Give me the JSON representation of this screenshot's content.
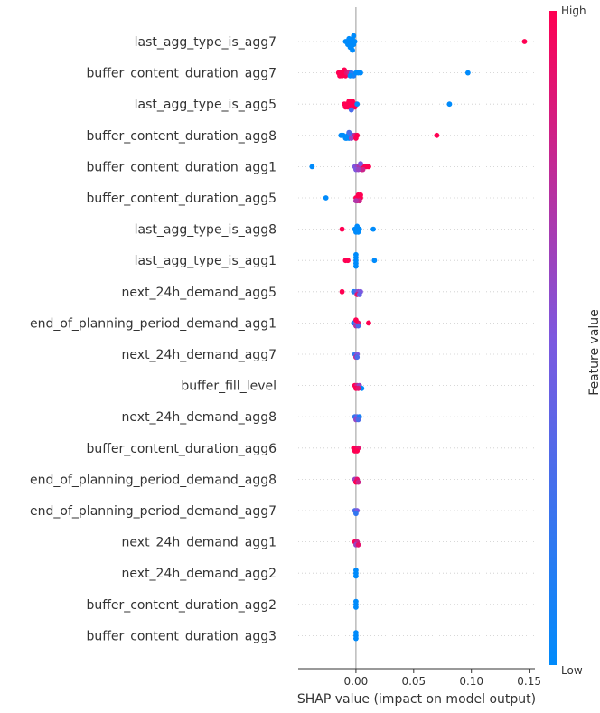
{
  "chart_data": {
    "type": "scatter",
    "subtype": "shap-beeswarm",
    "xlabel": "SHAP value (impact on model output)",
    "xlim": [
      -0.05,
      0.155
    ],
    "x_ticks": [
      {
        "value": 0.0,
        "label": "0.00"
      },
      {
        "value": 0.05,
        "label": "0.05"
      },
      {
        "value": 0.1,
        "label": "0.10"
      },
      {
        "value": 0.15,
        "label": "0.15"
      }
    ],
    "colorbar": {
      "title": "Feature value",
      "high_label": "High",
      "low_label": "Low",
      "low_color": "#008bfb",
      "high_color": "#ff0052"
    },
    "features": [
      {
        "name": "last_agg_type_is_agg7",
        "points": [
          [
            -0.008,
            0
          ],
          [
            -0.006,
            0
          ],
          [
            -0.004,
            0
          ],
          [
            -0.002,
            0
          ],
          [
            -0.007,
            0
          ],
          [
            -0.005,
            0
          ],
          [
            -0.003,
            0
          ],
          [
            -0.001,
            0
          ],
          [
            -0.009,
            0
          ],
          [
            -0.006,
            0
          ],
          [
            -0.004,
            0
          ],
          [
            -0.002,
            0
          ],
          [
            -0.005,
            0
          ],
          [
            -0.003,
            0
          ],
          [
            0.146,
            1
          ]
        ]
      },
      {
        "name": "buffer_content_duration_agg7",
        "points": [
          [
            -0.015,
            1
          ],
          [
            -0.013,
            1
          ],
          [
            -0.011,
            1
          ],
          [
            -0.009,
            1
          ],
          [
            -0.014,
            1
          ],
          [
            -0.012,
            1
          ],
          [
            -0.01,
            1
          ],
          [
            -0.008,
            0.9
          ],
          [
            -0.006,
            0.8
          ],
          [
            -0.004,
            0.2
          ],
          [
            -0.002,
            0.1
          ],
          [
            0.0,
            0
          ],
          [
            0.002,
            0
          ],
          [
            0.004,
            0
          ],
          [
            -0.005,
            0
          ],
          [
            0.097,
            0
          ]
        ]
      },
      {
        "name": "last_agg_type_is_agg5",
        "points": [
          [
            -0.01,
            1
          ],
          [
            -0.008,
            1
          ],
          [
            -0.006,
            1
          ],
          [
            -0.004,
            1
          ],
          [
            -0.002,
            1
          ],
          [
            0.0,
            1
          ],
          [
            -0.009,
            1
          ],
          [
            -0.007,
            1
          ],
          [
            -0.005,
            1
          ],
          [
            -0.003,
            1
          ],
          [
            -0.001,
            1
          ],
          [
            -0.006,
            1
          ],
          [
            0.001,
            0
          ],
          [
            -0.004,
            0.3
          ],
          [
            0.081,
            0
          ]
        ]
      },
      {
        "name": "buffer_content_duration_agg8",
        "points": [
          [
            -0.013,
            0
          ],
          [
            -0.011,
            0
          ],
          [
            -0.009,
            0
          ],
          [
            -0.007,
            0
          ],
          [
            -0.005,
            0.1
          ],
          [
            -0.003,
            0.4
          ],
          [
            -0.001,
            0.8
          ],
          [
            0.001,
            1
          ],
          [
            -0.008,
            0
          ],
          [
            -0.006,
            0
          ],
          [
            -0.004,
            0.6
          ],
          [
            0.0,
            1
          ],
          [
            -0.006,
            0.3
          ],
          [
            0.07,
            1
          ]
        ]
      },
      {
        "name": "buffer_content_duration_agg1",
        "points": [
          [
            -0.038,
            0
          ],
          [
            -0.001,
            0.5
          ],
          [
            0.001,
            0.6
          ],
          [
            0.003,
            0.7
          ],
          [
            0.005,
            0.9
          ],
          [
            0.007,
            1
          ],
          [
            0.009,
            1
          ],
          [
            0.011,
            1
          ],
          [
            0.0,
            0.5
          ],
          [
            0.002,
            0.6
          ],
          [
            0.004,
            0.5
          ],
          [
            0.006,
            0.8
          ]
        ]
      },
      {
        "name": "buffer_content_duration_agg5",
        "points": [
          [
            -0.026,
            0
          ],
          [
            0.0,
            1
          ],
          [
            0.002,
            1
          ],
          [
            0.004,
            1
          ],
          [
            0.001,
            0.9
          ],
          [
            0.003,
            0.8
          ],
          [
            0.0,
            0.7
          ],
          [
            0.002,
            1
          ],
          [
            0.004,
            1
          ]
        ]
      },
      {
        "name": "last_agg_type_is_agg8",
        "points": [
          [
            -0.012,
            1
          ],
          [
            -0.001,
            0
          ],
          [
            0.001,
            0
          ],
          [
            0.003,
            0
          ],
          [
            0.0,
            0
          ],
          [
            0.002,
            0
          ],
          [
            0.001,
            0
          ],
          [
            0.015,
            0
          ]
        ]
      },
      {
        "name": "last_agg_type_is_agg1",
        "points": [
          [
            -0.009,
            1
          ],
          [
            -0.007,
            1
          ],
          [
            0.0,
            0
          ],
          [
            0.0,
            0
          ],
          [
            0.0,
            0
          ],
          [
            0.0,
            0
          ],
          [
            0.0,
            0
          ],
          [
            0.016,
            0
          ]
        ]
      },
      {
        "name": "next_24h_demand_agg5",
        "points": [
          [
            -0.012,
            1
          ],
          [
            -0.002,
            0.1
          ],
          [
            0.0,
            0.3
          ],
          [
            0.002,
            0.6
          ],
          [
            0.004,
            0.5
          ],
          [
            0.001,
            0.9
          ],
          [
            0.003,
            0.4
          ]
        ]
      },
      {
        "name": "end_of_planning_period_demand_agg1",
        "points": [
          [
            -0.002,
            0.1
          ],
          [
            0.0,
            0.4
          ],
          [
            0.002,
            0.9
          ],
          [
            0.0,
            0.7
          ],
          [
            0.002,
            0.3
          ],
          [
            0.0,
            1
          ],
          [
            0.011,
            1
          ]
        ]
      },
      {
        "name": "next_24h_demand_agg7",
        "points": [
          [
            -0.001,
            0.2
          ],
          [
            0.001,
            0.5
          ],
          [
            0.0,
            0.8
          ],
          [
            0.001,
            0.3
          ]
        ]
      },
      {
        "name": "buffer_fill_level",
        "points": [
          [
            -0.001,
            1
          ],
          [
            0.001,
            0.8
          ],
          [
            0.003,
            0.6
          ],
          [
            0.005,
            0
          ],
          [
            0.0,
            1
          ],
          [
            0.002,
            0.9
          ]
        ]
      },
      {
        "name": "next_24h_demand_agg8",
        "points": [
          [
            -0.001,
            0.2
          ],
          [
            0.001,
            0.4
          ],
          [
            0.003,
            0.1
          ],
          [
            0.0,
            0.6
          ],
          [
            0.002,
            0.3
          ]
        ]
      },
      {
        "name": "buffer_content_duration_agg6",
        "points": [
          [
            -0.002,
            1
          ],
          [
            0.0,
            1
          ],
          [
            0.002,
            0.9
          ],
          [
            -0.001,
            1
          ],
          [
            0.001,
            1
          ]
        ]
      },
      {
        "name": "end_of_planning_period_demand_agg8",
        "points": [
          [
            -0.001,
            0.6
          ],
          [
            0.001,
            0.9
          ],
          [
            0.0,
            1
          ],
          [
            0.002,
            0.8
          ]
        ]
      },
      {
        "name": "end_of_planning_period_demand_agg7",
        "points": [
          [
            -0.001,
            0.3
          ],
          [
            0.001,
            0.5
          ],
          [
            0.0,
            0.2
          ]
        ]
      },
      {
        "name": "next_24h_demand_agg1",
        "points": [
          [
            -0.001,
            1
          ],
          [
            0.001,
            0.8
          ],
          [
            0.0,
            0.6
          ],
          [
            0.002,
            0.9
          ]
        ]
      },
      {
        "name": "next_24h_demand_agg2",
        "points": [
          [
            0.0,
            0
          ],
          [
            0.0,
            0
          ],
          [
            0.0,
            0
          ]
        ]
      },
      {
        "name": "buffer_content_duration_agg2",
        "points": [
          [
            0.0,
            0
          ],
          [
            0.0,
            0
          ],
          [
            0.0,
            0
          ]
        ]
      },
      {
        "name": "buffer_content_duration_agg3",
        "points": [
          [
            0.0,
            0
          ],
          [
            0.0,
            0
          ],
          [
            0.0,
            0
          ]
        ]
      }
    ]
  }
}
